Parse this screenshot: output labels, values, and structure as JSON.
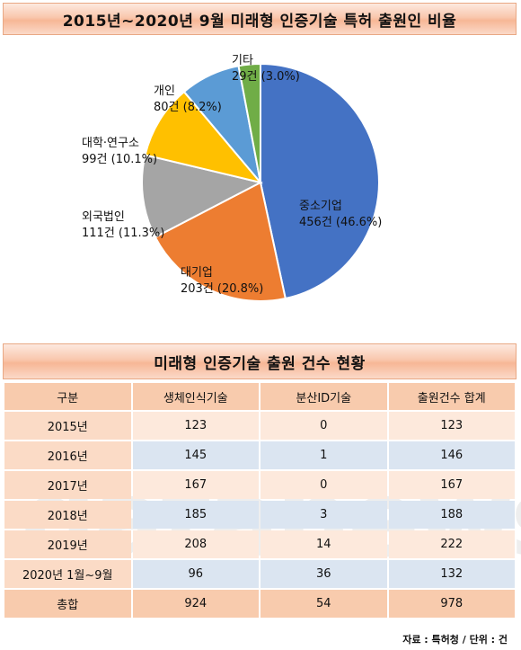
{
  "pie_title": "2015년~2020년 9월 미래형 인증기술 특허 출원인 비율",
  "table_title": "미래형 인증기술 출원 건수 현황",
  "chart_data": [
    {
      "type": "pie",
      "title": "2015년~2020년 9월 미래형 인증기술 특허 출원인 비율",
      "slices": [
        {
          "name": "중소기업",
          "value": 456,
          "label": "456건 (46.6%)",
          "color": "#4472c4"
        },
        {
          "name": "대기업",
          "value": 203,
          "label": "203건 (20.8%)",
          "color": "#ed7d31"
        },
        {
          "name": "외국법인",
          "value": 111,
          "label": "111건 (11.3%)",
          "color": "#a5a5a5"
        },
        {
          "name": "대학·연구소",
          "value": 99,
          "label": "99건 (10.1%)",
          "color": "#ffc000"
        },
        {
          "name": "개인",
          "value": 80,
          "label": "80건 (8.2%)",
          "color": "#5b9bd5"
        },
        {
          "name": "기타",
          "value": 29,
          "label": "29건 (3.0%)",
          "color": "#70ad47"
        }
      ]
    },
    {
      "type": "table",
      "title": "미래형 인증기술 출원 건수 현황",
      "columns": [
        "구분",
        "생체인식기술",
        "분산ID기술",
        "출원건수 합계"
      ],
      "rows": [
        [
          "2015년",
          "123",
          "0",
          "123"
        ],
        [
          "2016년",
          "145",
          "1",
          "146"
        ],
        [
          "2017년",
          "167",
          "0",
          "167"
        ],
        [
          "2018년",
          "185",
          "3",
          "188"
        ],
        [
          "2019년",
          "208",
          "14",
          "222"
        ],
        [
          "2020년 1월~9월",
          "96",
          "36",
          "132"
        ],
        [
          "총합",
          "924",
          "54",
          "978"
        ]
      ]
    }
  ],
  "watermark": "datanews",
  "source": "자료 : 특허청 / 단위 : 건"
}
